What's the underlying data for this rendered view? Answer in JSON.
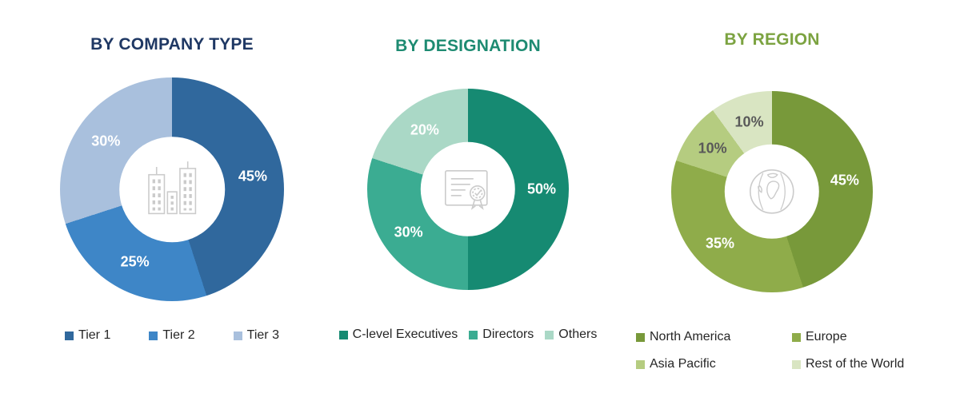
{
  "figure": {
    "background": "#FFFFFF",
    "icon_stroke_color": "#CBCBCB",
    "legend_text_color": "#262626"
  },
  "chart_data": [
    {
      "type": "donut",
      "title": "BY COMPANY TYPE",
      "title_color": "#1F3864",
      "center_icon": "buildings-icon",
      "start_angle": "top",
      "direction": "clockwise",
      "legend_position": "bottom",
      "categories": [
        "Tier 1",
        "Tier 2",
        "Tier 3"
      ],
      "values": [
        45,
        25,
        30
      ],
      "segments": [
        {
          "label": "Tier 1",
          "value_pct": 45,
          "data_label": "45%",
          "color": "#30689D",
          "data_label_color": "#FFFFFF"
        },
        {
          "label": "Tier 2",
          "value_pct": 25,
          "data_label": "25%",
          "color": "#3E86C7",
          "data_label_color": "#FFFFFF"
        },
        {
          "label": "Tier 3",
          "value_pct": 30,
          "data_label": "30%",
          "color": "#A9C0DD",
          "data_label_color": "#FFFFFF"
        }
      ]
    },
    {
      "type": "donut",
      "title": "BY DESIGNATION",
      "title_color": "#1E8B72",
      "center_icon": "certificate-icon",
      "start_angle": "top",
      "direction": "clockwise",
      "legend_position": "bottom",
      "categories": [
        "C-level Executives",
        "Directors",
        "Others"
      ],
      "values": [
        50,
        30,
        20
      ],
      "segments": [
        {
          "label": "C-level Executives",
          "value_pct": 50,
          "data_label": "50%",
          "color": "#168A72",
          "data_label_color": "#FFFFFF"
        },
        {
          "label": "Directors",
          "value_pct": 30,
          "data_label": "30%",
          "color": "#3BAC92",
          "data_label_color": "#FFFFFF"
        },
        {
          "label": "Others",
          "value_pct": 20,
          "data_label": "20%",
          "color": "#AAD8C6",
          "data_label_color": "#FFFFFF"
        }
      ]
    },
    {
      "type": "donut",
      "title": "BY REGION",
      "title_color": "#7CA341",
      "center_icon": "globe-icon",
      "start_angle": "top",
      "direction": "clockwise",
      "legend_position": "bottom",
      "categories": [
        "North America",
        "Europe",
        "Asia Pacific",
        "Rest of the World"
      ],
      "values": [
        45,
        35,
        10,
        10
      ],
      "segments": [
        {
          "label": "North America",
          "value_pct": 45,
          "data_label": "45%",
          "color": "#78993A",
          "data_label_color": "#FFFFFF"
        },
        {
          "label": "Europe",
          "value_pct": 35,
          "data_label": "35%",
          "color": "#8FAC4A",
          "data_label_color": "#FFFFFF"
        },
        {
          "label": "Asia Pacific",
          "value_pct": 10,
          "data_label": "10%",
          "color": "#B5CC80",
          "data_label_color": "#595959"
        },
        {
          "label": "Rest of the World",
          "value_pct": 10,
          "data_label": "10%",
          "color": "#D9E5C2",
          "data_label_color": "#595959"
        }
      ]
    }
  ]
}
